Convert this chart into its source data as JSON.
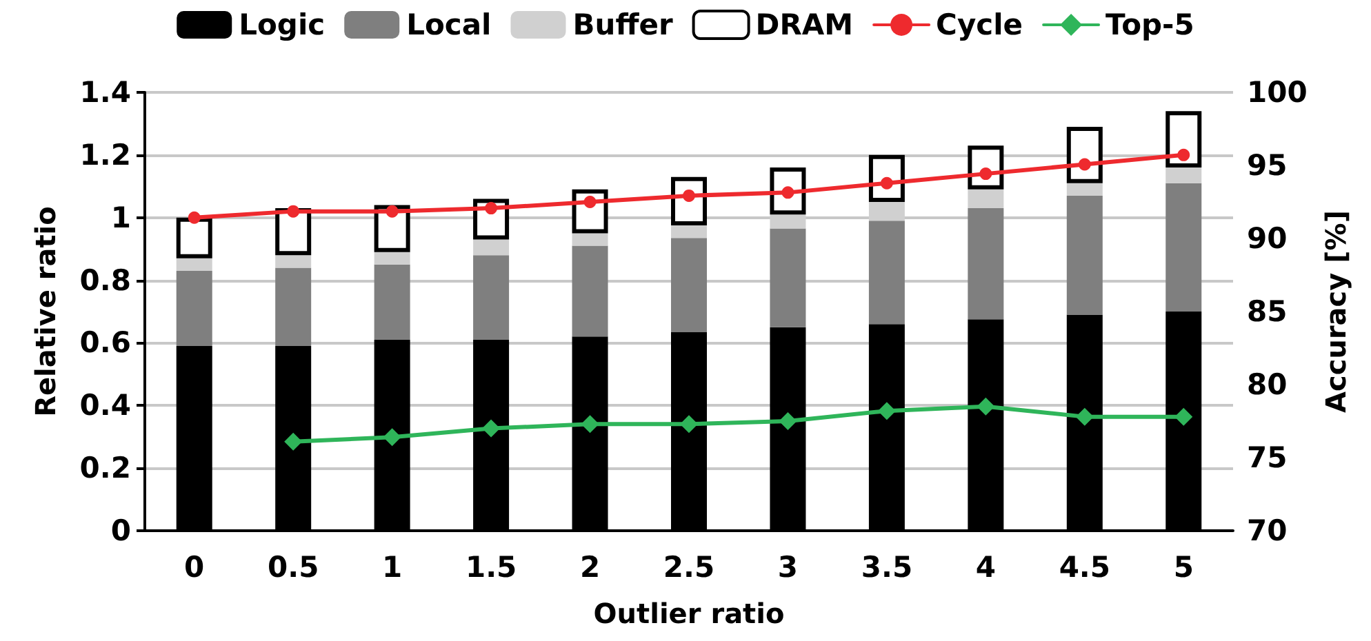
{
  "chart_data": {
    "type": "bar",
    "stacked": true,
    "xlabel": "Outlier ratio",
    "ylabel": "Relative ratio",
    "y2label": "Accuracy [%]",
    "categories": [
      "0",
      "0.5",
      "1",
      "1.5",
      "2",
      "2.5",
      "3",
      "3.5",
      "4",
      "4.5",
      "5"
    ],
    "ylim": [
      0,
      1.4
    ],
    "yticks": [
      0,
      0.2,
      0.4,
      0.6,
      0.8,
      1,
      1.2,
      1.4
    ],
    "y2lim": [
      70,
      100
    ],
    "y2ticks": [
      70,
      75,
      80,
      85,
      90,
      95,
      100
    ],
    "grid": "y",
    "legend": "top",
    "series": [
      {
        "name": "Logic",
        "color": "#000000",
        "values": [
          0.59,
          0.59,
          0.61,
          0.61,
          0.62,
          0.635,
          0.65,
          0.66,
          0.675,
          0.69,
          0.7
        ]
      },
      {
        "name": "Local",
        "color": "#7f7f7f",
        "values": [
          0.24,
          0.25,
          0.24,
          0.27,
          0.29,
          0.3,
          0.315,
          0.33,
          0.355,
          0.38,
          0.41
        ]
      },
      {
        "name": "Buffer",
        "color": "#d0d0d0",
        "values": [
          0.04,
          0.04,
          0.04,
          0.05,
          0.04,
          0.04,
          0.045,
          0.06,
          0.06,
          0.04,
          0.05
        ]
      },
      {
        "name": "DRAM",
        "color": "#ffffff",
        "values": [
          0.13,
          0.15,
          0.15,
          0.13,
          0.14,
          0.155,
          0.15,
          0.15,
          0.14,
          0.18,
          0.18
        ]
      },
      {
        "name": "Cycle",
        "type": "line",
        "color": "#ee2a2e",
        "marker": "circle",
        "values": [
          1.0,
          1.02,
          1.02,
          1.03,
          1.05,
          1.07,
          1.08,
          1.11,
          1.14,
          1.17,
          1.2
        ]
      },
      {
        "name": "Top-5",
        "type": "line",
        "axis": "y2",
        "color": "#2fb55a",
        "marker": "diamond",
        "values": [
          null,
          76.1,
          76.4,
          77.0,
          77.3,
          77.3,
          77.5,
          78.2,
          78.5,
          77.8,
          77.8
        ]
      }
    ]
  }
}
